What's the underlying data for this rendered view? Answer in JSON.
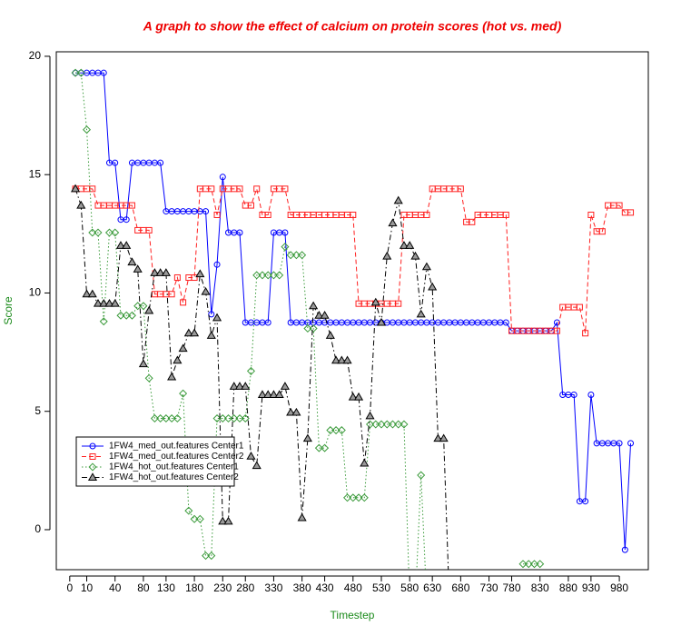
{
  "chart_data": {
    "type": "line",
    "title": "A graph to show the effect of calcium on protein scores (hot vs. med)",
    "x_label": "Timestep",
    "y_label": "Score",
    "categories": [
      "0",
      null,
      null,
      "10",
      null,
      null,
      null,
      null,
      "40",
      null,
      null,
      null,
      null,
      "80",
      null,
      null,
      null,
      "130",
      null,
      null,
      null,
      null,
      "180",
      null,
      null,
      null,
      null,
      "230",
      null,
      null,
      null,
      "280",
      null,
      null,
      null,
      null,
      "330",
      null,
      null,
      null,
      null,
      "380",
      null,
      null,
      null,
      "430",
      null,
      null,
      null,
      null,
      "480",
      null,
      null,
      null,
      null,
      "530",
      null,
      null,
      null,
      null,
      "580",
      null,
      null,
      null,
      "630",
      null,
      null,
      null,
      null,
      "680",
      null,
      null,
      null,
      null,
      "730",
      null,
      null,
      null,
      "780",
      null,
      null,
      null,
      null,
      "830",
      null,
      null,
      null,
      null,
      "880",
      null,
      null,
      null,
      "930",
      null,
      null,
      null,
      null,
      "980",
      null,
      null
    ],
    "series": [
      {
        "name": "1FW4_med_out.features Center1",
        "color": "#0000ff",
        "linestyle": "solid",
        "marker": "circle",
        "values": [
          null,
          19.3,
          19.3,
          19.3,
          19.3,
          19.3,
          19.3,
          15.5,
          15.5,
          13.1,
          13.1,
          15.5,
          15.5,
          15.5,
          15.5,
          15.5,
          15.5,
          13.45,
          13.45,
          13.45,
          13.45,
          13.45,
          13.45,
          13.45,
          13.45,
          9.1,
          11.2,
          14.9,
          12.55,
          12.55,
          12.55,
          8.75,
          8.75,
          8.75,
          8.75,
          8.75,
          12.55,
          12.55,
          12.55,
          8.75,
          8.75,
          8.75,
          8.75,
          8.75,
          8.75,
          8.75,
          8.75,
          8.75,
          8.75,
          8.75,
          8.75,
          8.75,
          8.75,
          8.75,
          8.75,
          8.75,
          8.75,
          8.75,
          8.75,
          8.75,
          8.75,
          8.75,
          8.75,
          8.75,
          8.75,
          8.75,
          8.75,
          8.75,
          8.75,
          8.75,
          8.75,
          8.75,
          8.75,
          8.75,
          8.75,
          8.75,
          8.75,
          8.75,
          8.4,
          8.4,
          8.4,
          8.4,
          8.4,
          8.4,
          8.4,
          8.4,
          8.75,
          5.7,
          5.7,
          5.7,
          1.2,
          1.2,
          5.7,
          3.65,
          3.65,
          3.65,
          3.65,
          3.65,
          -0.85,
          3.65
        ]
      },
      {
        "name": "1FW4_med_out.features Center2",
        "color": "#ff2020",
        "linestyle": "dashed",
        "marker": "square",
        "values": [
          null,
          14.4,
          14.4,
          14.4,
          14.4,
          13.7,
          13.7,
          13.7,
          13.7,
          13.7,
          13.7,
          13.7,
          12.65,
          12.65,
          12.65,
          9.95,
          9.95,
          9.95,
          9.95,
          10.65,
          9.6,
          10.65,
          10.65,
          14.4,
          14.4,
          14.4,
          13.3,
          14.4,
          14.4,
          14.4,
          14.4,
          13.7,
          13.7,
          14.4,
          13.3,
          13.3,
          14.4,
          14.4,
          14.4,
          13.3,
          13.3,
          13.3,
          13.3,
          13.3,
          13.3,
          13.3,
          13.3,
          13.3,
          13.3,
          13.3,
          13.3,
          9.55,
          9.55,
          9.55,
          9.55,
          9.55,
          9.55,
          9.55,
          9.55,
          13.3,
          13.3,
          13.3,
          13.3,
          13.3,
          14.4,
          14.4,
          14.4,
          14.4,
          14.4,
          14.4,
          13.0,
          13.0,
          13.3,
          13.3,
          13.3,
          13.3,
          13.3,
          13.3,
          8.4,
          8.4,
          8.4,
          8.4,
          8.4,
          8.4,
          8.4,
          8.4,
          8.4,
          9.4,
          9.4,
          9.4,
          9.4,
          8.3,
          13.3,
          12.6,
          12.6,
          13.7,
          13.7,
          13.7,
          13.4,
          13.4
        ]
      },
      {
        "name": "1FW4_hot_out.features Center1",
        "color": "#3a9a3a",
        "linestyle": "dotted",
        "marker": "diamond",
        "values": [
          null,
          19.3,
          19.3,
          16.9,
          12.55,
          12.55,
          8.8,
          12.55,
          12.55,
          9.05,
          9.05,
          9.05,
          9.45,
          9.45,
          6.4,
          4.7,
          4.7,
          4.7,
          4.7,
          4.7,
          5.75,
          0.8,
          0.45,
          0.45,
          -1.1,
          -1.1,
          4.7,
          4.7,
          4.7,
          4.7,
          4.7,
          4.7,
          6.7,
          10.75,
          10.75,
          10.75,
          10.75,
          10.75,
          11.95,
          11.6,
          11.6,
          11.6,
          8.5,
          8.5,
          3.45,
          3.45,
          4.2,
          4.2,
          4.2,
          1.35,
          1.35,
          1.35,
          1.35,
          4.45,
          4.45,
          4.45,
          4.45,
          4.45,
          4.45,
          4.45,
          -3,
          -3,
          2.3,
          -3,
          null,
          null,
          null,
          null,
          null,
          null,
          null,
          null,
          null,
          null,
          null,
          null,
          null,
          null,
          null,
          null,
          -1.45,
          -1.45,
          -1.45,
          -1.45,
          null,
          null,
          null,
          null,
          null,
          null,
          null,
          null,
          null,
          null,
          null,
          null,
          null,
          null,
          null,
          null
        ]
      },
      {
        "name": "1FW4_hot_out.features Center2",
        "color": "#000000",
        "linestyle": "dashdot",
        "marker": "triangle",
        "values": [
          null,
          14.4,
          13.7,
          9.95,
          9.95,
          9.55,
          9.55,
          9.55,
          9.55,
          12.0,
          12.0,
          11.3,
          11.0,
          7.0,
          9.25,
          10.85,
          10.85,
          10.85,
          6.45,
          7.15,
          7.65,
          8.3,
          8.3,
          10.8,
          10.05,
          8.2,
          8.95,
          0.35,
          0.35,
          6.05,
          6.05,
          6.05,
          3.1,
          2.7,
          5.7,
          5.7,
          5.7,
          5.7,
          6.05,
          4.95,
          4.95,
          0.5,
          3.85,
          9.45,
          9.05,
          9.05,
          8.2,
          7.15,
          7.15,
          7.15,
          5.6,
          5.6,
          2.8,
          4.8,
          9.6,
          8.75,
          11.55,
          12.95,
          13.9,
          12.0,
          12.0,
          11.55,
          9.1,
          11.1,
          10.25,
          3.85,
          3.85,
          -3,
          null,
          null,
          null,
          null,
          null,
          null,
          null,
          null,
          null,
          null,
          null,
          null,
          null,
          null,
          null,
          null,
          null,
          null,
          null,
          null,
          null,
          null,
          null,
          null,
          null,
          null,
          null,
          null,
          null,
          null,
          null,
          null
        ]
      }
    ],
    "ylim": [
      -1.69,
      20.19
    ],
    "yticks": [
      0,
      5,
      10,
      15,
      20
    ],
    "legend": "bottomleft"
  }
}
